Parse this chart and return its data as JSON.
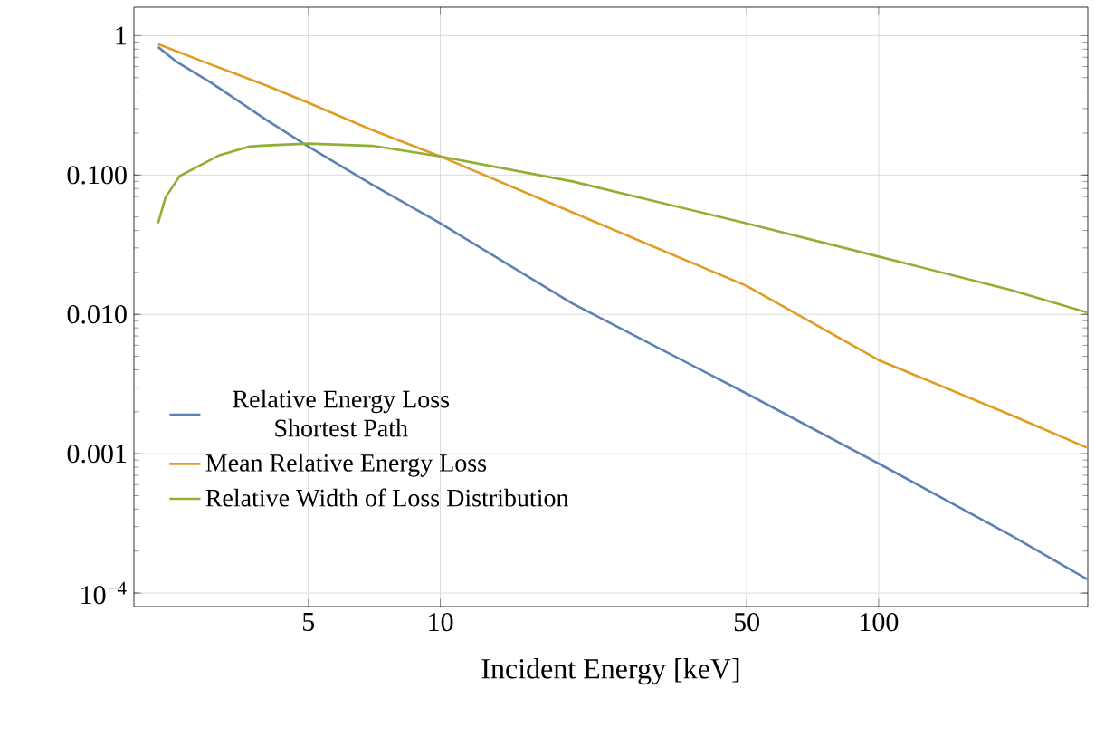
{
  "chart_data": {
    "type": "line",
    "xlabel": "Incident Energy [keV]",
    "log": "xy",
    "grid": true,
    "legend": "bottom left",
    "marker": "none",
    "xlim": [
      2,
      300
    ],
    "ylim": [
      8e-05,
      1.6
    ],
    "xticks": [
      5,
      10,
      50,
      100
    ],
    "yticks": [
      {
        "value": 0.0001,
        "label": "10$^{−4}$"
      },
      {
        "value": 0.001,
        "label": "0.001"
      },
      {
        "value": 0.01,
        "label": "0.010"
      },
      {
        "value": 0.1,
        "label": "0.100"
      },
      1
    ],
    "series": [
      {
        "name": "Relative Energy Loss Shortest Path",
        "color": "#5e81b5",
        "x": [
          2.27,
          2.5,
          3,
          4,
          5,
          7,
          10,
          20,
          50,
          100,
          200,
          300
        ],
        "values": [
          0.83,
          0.65,
          0.46,
          0.25,
          0.16,
          0.085,
          0.045,
          0.012,
          0.0027,
          0.00085,
          0.00026,
          0.000125
        ]
      },
      {
        "name": "Mean Relative Energy Loss",
        "color": "#e19c24",
        "x": [
          2.27,
          3,
          4,
          5,
          7,
          10,
          20,
          50,
          100,
          200,
          300
        ],
        "values": [
          0.87,
          0.62,
          0.44,
          0.33,
          0.21,
          0.136,
          0.054,
          0.016,
          0.0047,
          0.0019,
          0.0011
        ]
      },
      {
        "name": "Relative Width of Loss Distribution",
        "color": "#8fb032",
        "x": [
          2.27,
          2.36,
          2.54,
          3.12,
          3.66,
          4,
          5,
          7,
          10,
          20,
          50,
          100,
          200,
          300
        ],
        "values": [
          0.045,
          0.069,
          0.098,
          0.138,
          0.16,
          0.163,
          0.168,
          0.162,
          0.136,
          0.09,
          0.045,
          0.026,
          0.015,
          0.0103
        ]
      }
    ]
  }
}
